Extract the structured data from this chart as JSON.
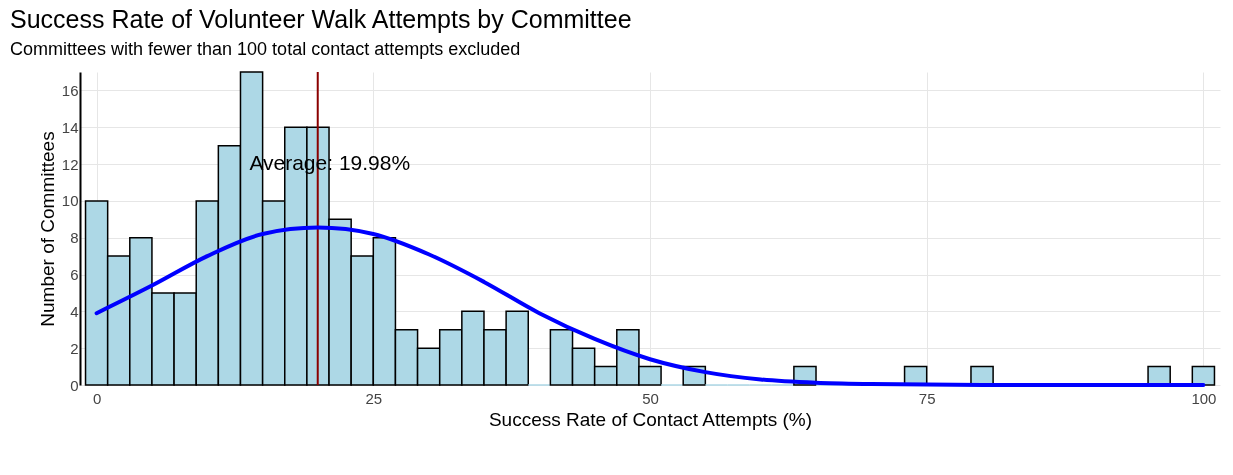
{
  "chart_data": {
    "type": "histogram",
    "title": "Success Rate of Volunteer Walk Attempts by Committee",
    "subtitle": "Committees with fewer than 100 total contact attempts excluded",
    "xlabel": "Success Rate of Contact Attempts (%)",
    "ylabel": "Number of Committees",
    "bins": [
      -1,
      1,
      3,
      5,
      7,
      9,
      11,
      13,
      15,
      17,
      19,
      21,
      23,
      25,
      27,
      29,
      31,
      33,
      35,
      37,
      39,
      41,
      43,
      45,
      47,
      49,
      51,
      53,
      55,
      57,
      59,
      61,
      63,
      65,
      67,
      69,
      71,
      73,
      75,
      77,
      79,
      81,
      83,
      85,
      87,
      89,
      91,
      93,
      95,
      97,
      99,
      101
    ],
    "values": [
      10,
      7,
      8,
      5,
      5,
      10,
      13,
      17,
      10,
      14,
      14,
      9,
      7,
      8,
      3,
      2,
      3,
      4,
      3,
      4,
      0,
      3,
      2,
      1,
      3,
      1,
      0,
      1,
      0,
      0,
      0,
      0,
      1,
      0,
      0,
      0,
      0,
      1,
      0,
      0,
      1,
      0,
      0,
      0,
      0,
      0,
      0,
      0,
      1,
      0,
      1
    ],
    "color": "#add8e6",
    "series": [
      {
        "type": "line",
        "color": "#0000ff",
        "x": [
          0,
          5,
          10,
          15,
          20,
          25,
          30,
          35,
          40,
          45,
          50,
          55,
          60,
          65,
          70,
          80,
          90,
          100
        ],
        "values": [
          3.9,
          5.4,
          7.0,
          8.2,
          8.55,
          8.2,
          7.1,
          5.6,
          3.9,
          2.5,
          1.4,
          0.7,
          0.3,
          0.12,
          0.05,
          0,
          0,
          0
        ]
      }
    ],
    "ref_lines": [
      {
        "axis": "x",
        "value": 19.98,
        "color": "#8b0000"
      }
    ],
    "annotations": [
      {
        "text": "Average: 19.98%",
        "x": 19.98,
        "y": 12
      }
    ],
    "xlim": [
      -1.5,
      101.5
    ],
    "xticks": [
      0,
      25,
      50,
      75,
      100
    ],
    "ylim": [
      0,
      17
    ],
    "yticks": [
      0,
      2,
      4,
      6,
      8,
      10,
      12,
      14,
      16
    ],
    "grid": true
  }
}
